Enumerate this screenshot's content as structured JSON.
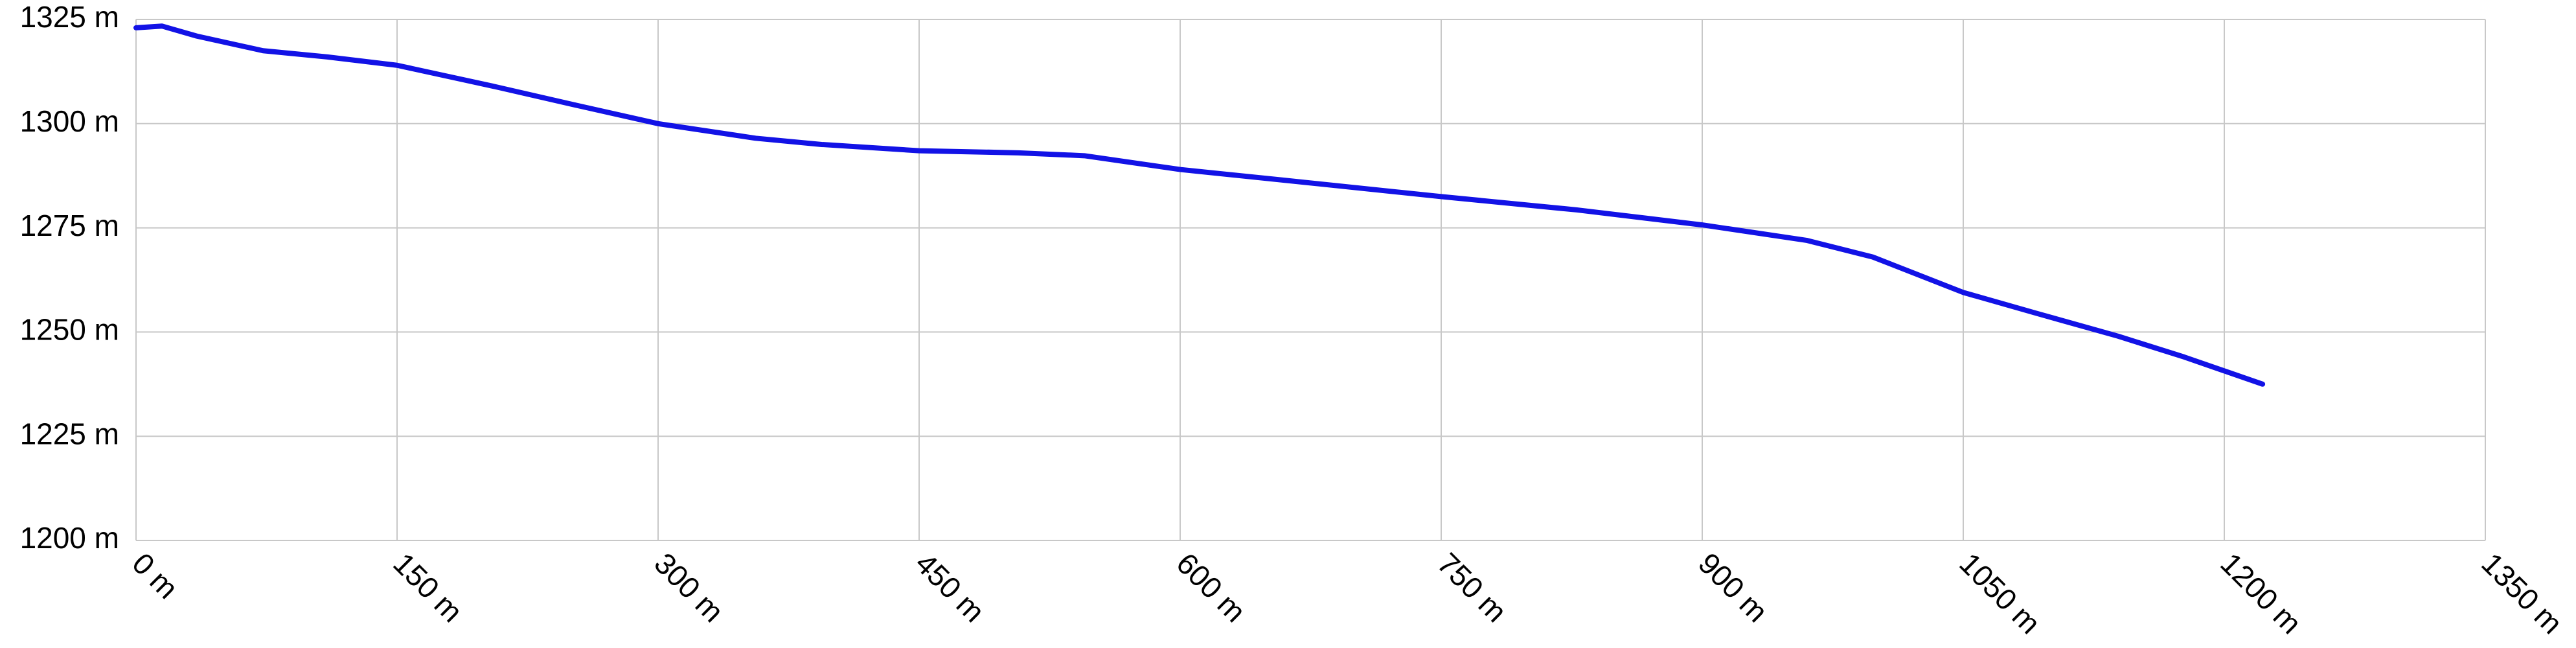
{
  "chart_data": {
    "type": "line",
    "x": [
      0,
      15,
      35,
      73,
      110,
      150,
      205,
      252,
      300,
      356,
      394,
      450,
      507,
      545,
      600,
      658,
      750,
      828,
      900,
      960,
      998,
      1050,
      1092,
      1139,
      1177,
      1222
    ],
    "series": [
      {
        "color": "#1212e6",
        "values": [
          1323,
          1323.4,
          1321,
          1317.5,
          1316,
          1314,
          1309,
          1304.5,
          1300,
          1296.5,
          1295,
          1293.5,
          1293,
          1292.3,
          1289,
          1286.5,
          1282.5,
          1279.3,
          1275.7,
          1272,
          1268,
          1259.5,
          1254.5,
          1249,
          1244,
          1237.5
        ]
      }
    ],
    "xlim": [
      0,
      1350
    ],
    "xticks": [
      {
        "value": 0,
        "label": "0 m"
      },
      {
        "value": 150,
        "label": "150 m"
      },
      {
        "value": 300,
        "label": "300 m"
      },
      {
        "value": 450,
        "label": "450 m"
      },
      {
        "value": 600,
        "label": "600 m"
      },
      {
        "value": 750,
        "label": "750 m"
      },
      {
        "value": 900,
        "label": "900 m"
      },
      {
        "value": 1050,
        "label": "1050 m"
      },
      {
        "value": 1200,
        "label": "1200 m"
      },
      {
        "value": 1350,
        "label": "1350 m"
      }
    ],
    "ylim": [
      1200,
      1325
    ],
    "yticks": [
      {
        "value": 1200,
        "label": "1200 m"
      },
      {
        "value": 1225,
        "label": "1225 m"
      },
      {
        "value": 1250,
        "label": "1250 m"
      },
      {
        "value": 1275,
        "label": "1275 m"
      },
      {
        "value": 1300,
        "label": "1300 m"
      },
      {
        "value": 1325,
        "label": "1325 m"
      }
    ],
    "grid": true
  }
}
